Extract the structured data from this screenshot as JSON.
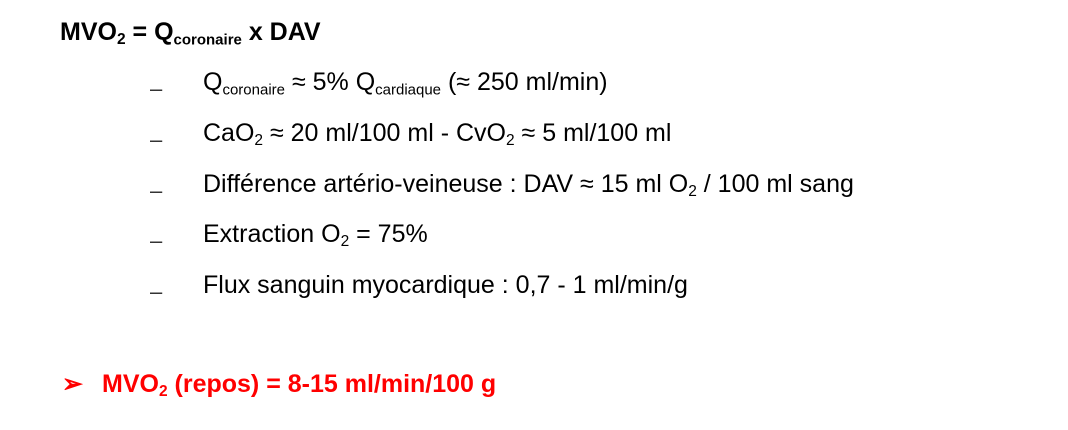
{
  "title": {
    "part1": "MVO",
    "sub1": "2",
    "part2": " = Q",
    "sub2": "coronaire",
    "part3": " x DAV"
  },
  "items": [
    {
      "dash": "–",
      "a": "Q",
      "sa": "coronaire",
      "b": " ≈ 5% Q",
      "sb": "cardiaque",
      "c": " (≈ 250 ml/min)"
    },
    {
      "dash": "–",
      "a": "CaO",
      "sa": "2",
      "b": " ≈ 20 ml/100 ml - CvO",
      "sb": "2",
      "c": " ≈ 5 ml/100 ml"
    },
    {
      "dash": "–",
      "a": "Différence artério-veineuse : DAV ≈ 15 ml O",
      "sa": "2",
      "b": " / 100 ml sang"
    },
    {
      "dash": "–",
      "a": "Extraction O",
      "sa": "2",
      "b": " = 75%"
    },
    {
      "dash": "–",
      "a": "Flux sanguin myocardique : 0,7 - 1 ml/min/g"
    }
  ],
  "final": {
    "arrow": "➢",
    "part1": "MVO",
    "sub1": "2",
    "part2": " (repos) = 8-15 ml/min/100 g",
    "color": "#ff0000"
  }
}
